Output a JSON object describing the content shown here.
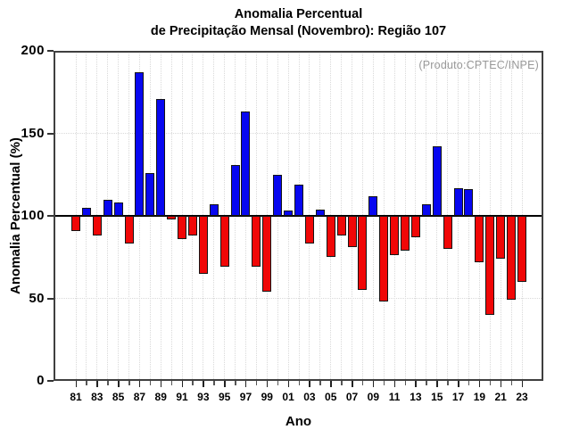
{
  "chart_data": {
    "type": "bar",
    "title_lines": [
      "Anomalia Percentual",
      "de Precipitação Mensal (Novembro): Região 107"
    ],
    "title": "Anomalia Percentual de Precipitação Mensal (Novembro): Região 107",
    "watermark": "(Produto:CPTEC/INPE)",
    "xlabel": "Ano",
    "ylabel": "Anomalia Percentual (%)",
    "ylim": [
      0,
      200
    ],
    "yticks": [
      0,
      50,
      100,
      150,
      200
    ],
    "baseline": 100,
    "legend": "none",
    "grid": {
      "h_dotted_at": [
        50,
        150
      ],
      "v_dotted": "every year category"
    },
    "bar_colors": {
      "above_baseline": "#0707f0",
      "below_baseline": "#f00707",
      "border": "#151515"
    },
    "categories": [
      "81",
      "82",
      "83",
      "84",
      "85",
      "86",
      "87",
      "88",
      "89",
      "90",
      "91",
      "92",
      "93",
      "94",
      "95",
      "96",
      "97",
      "98",
      "99",
      "00",
      "01",
      "02",
      "03",
      "04",
      "05",
      "06",
      "07",
      "08",
      "09",
      "10",
      "11",
      "12",
      "13",
      "14",
      "15",
      "16",
      "17",
      "18",
      "19",
      "20",
      "21",
      "22",
      "23"
    ],
    "labeled_categories": [
      "81",
      "83",
      "85",
      "87",
      "89",
      "91",
      "93",
      "95",
      "97",
      "99",
      "01",
      "03",
      "05",
      "07",
      "09",
      "11",
      "13",
      "15",
      "17",
      "19",
      "21",
      "23"
    ],
    "values": [
      91,
      105,
      88,
      110,
      108,
      83,
      187,
      126,
      171,
      98,
      86,
      88,
      65,
      107,
      69,
      131,
      163,
      69,
      54,
      125,
      103,
      119,
      83,
      104,
      75,
      88,
      81,
      55,
      112,
      48,
      76,
      79,
      87,
      107,
      142,
      80,
      117,
      116,
      72,
      40,
      74,
      49,
      60
    ]
  }
}
